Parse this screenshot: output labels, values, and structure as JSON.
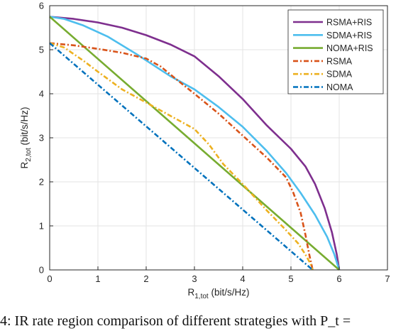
{
  "caption": "4: IR rate region comparison of different strategies with P_t =",
  "chart_data": {
    "type": "line",
    "xlabel": "R_{1,tot} (bit/s/Hz)",
    "ylabel": "R_{2,tot} (bit/s/Hz)",
    "xlim": [
      0,
      7
    ],
    "ylim": [
      0,
      6
    ],
    "xticks": [
      0,
      1,
      2,
      3,
      4,
      5,
      6,
      7
    ],
    "yticks": [
      0,
      1,
      2,
      3,
      4,
      5,
      6
    ],
    "grid": true,
    "legend_position": "top-right",
    "series": [
      {
        "name": "RSMA+RIS",
        "color": "#7e2f8e",
        "style": "solid",
        "x": [
          0,
          0.5,
          1.0,
          1.5,
          2.0,
          2.5,
          3.0,
          3.5,
          4.0,
          4.5,
          5.0,
          5.3,
          5.5,
          5.7,
          5.85,
          5.95,
          6.0
        ],
        "y": [
          5.75,
          5.7,
          5.62,
          5.5,
          5.33,
          5.12,
          4.85,
          4.4,
          3.88,
          3.28,
          2.75,
          2.35,
          1.95,
          1.4,
          0.85,
          0.35,
          0
        ]
      },
      {
        "name": "SDMA+RIS",
        "color": "#4dbeee",
        "style": "solid",
        "x": [
          0,
          0.3,
          0.7,
          1.2,
          1.8,
          2.5,
          3.0,
          3.5,
          4.0,
          4.5,
          4.9,
          5.2,
          5.5,
          5.75,
          5.9,
          6.0
        ],
        "y": [
          5.75,
          5.7,
          5.55,
          5.3,
          4.9,
          4.4,
          4.1,
          3.7,
          3.25,
          2.7,
          2.2,
          1.75,
          1.25,
          0.75,
          0.35,
          0
        ]
      },
      {
        "name": "NOMA+RIS",
        "color": "#77ac30",
        "style": "solid",
        "x": [
          0,
          6.0
        ],
        "y": [
          5.75,
          0
        ]
      },
      {
        "name": "RSMA",
        "color": "#d95319",
        "style": "dashdot",
        "x": [
          0,
          0.5,
          1.0,
          1.5,
          2.0,
          2.3,
          2.6,
          3.0,
          3.5,
          4.0,
          4.5,
          4.9,
          5.05,
          5.2,
          5.3,
          5.38,
          5.45
        ],
        "y": [
          5.15,
          5.1,
          5.02,
          4.93,
          4.8,
          4.62,
          4.35,
          4.0,
          3.55,
          3.05,
          2.55,
          2.1,
          1.75,
          1.3,
          0.8,
          0.35,
          0
        ]
      },
      {
        "name": "SDMA",
        "color": "#edb120",
        "style": "dashdot",
        "x": [
          0,
          0.3,
          0.7,
          1.0,
          1.5,
          2.0,
          2.5,
          3.0,
          3.3,
          3.6,
          4.0,
          4.5,
          4.9,
          5.15,
          5.3,
          5.4,
          5.45
        ],
        "y": [
          5.15,
          5.05,
          4.75,
          4.5,
          4.1,
          3.8,
          3.5,
          3.2,
          2.85,
          2.4,
          1.95,
          1.35,
          0.9,
          0.6,
          0.35,
          0.15,
          0
        ]
      },
      {
        "name": "NOMA",
        "color": "#0072bd",
        "style": "dashdot",
        "x": [
          0,
          5.45
        ],
        "y": [
          5.15,
          0
        ]
      }
    ]
  }
}
